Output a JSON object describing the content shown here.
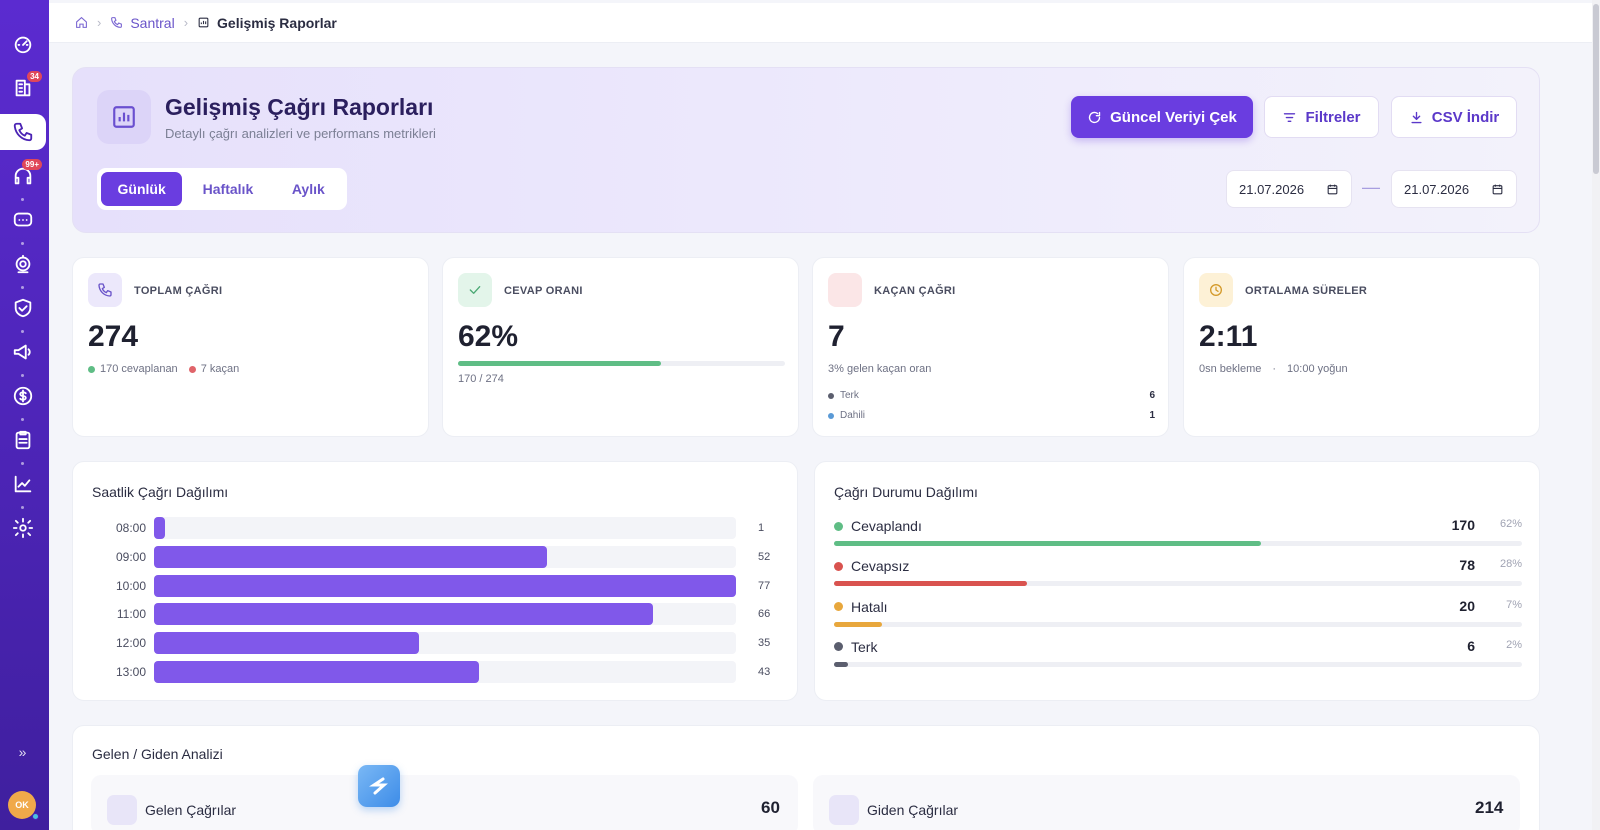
{
  "sidebar": {
    "items": [
      {
        "icon": "gauge-icon",
        "badge": ""
      },
      {
        "icon": "inbox-icon",
        "badge": "34"
      },
      {
        "icon": "phone-icon",
        "badge": "",
        "active": true
      },
      {
        "icon": "headset-icon",
        "badge": "99+"
      },
      {
        "icon": "chat-icon",
        "badge": ""
      },
      {
        "icon": "camera-icon",
        "badge": ""
      },
      {
        "icon": "shield-icon",
        "badge": ""
      },
      {
        "icon": "megaphone-icon",
        "badge": ""
      },
      {
        "icon": "dollar-icon",
        "badge": ""
      },
      {
        "icon": "clipboard-icon",
        "badge": ""
      },
      {
        "icon": "chart-line-icon",
        "badge": ""
      },
      {
        "icon": "gear-icon",
        "badge": ""
      }
    ],
    "expand_label": "»",
    "avatar_initials": "OK"
  },
  "breadcrumb": {
    "items": [
      "Santral",
      "Gelişmiş Raporlar"
    ]
  },
  "hero": {
    "title": "Gelişmiş Çağrı Raporları",
    "subtitle": "Detaylı çağrı analizleri ve performans metrikleri",
    "refresh_label": "Güncel Veriyi Çek",
    "filter_label": "Filtreler",
    "csv_label": "CSV İndir",
    "tabs": [
      "Günlük",
      "Haftalık",
      "Aylık"
    ],
    "active_tab": "Günlük",
    "date_from": "21.07.2026",
    "date_to": "21.07.2026",
    "date_separator": "—"
  },
  "kpis": {
    "total": {
      "label": "TOPLAM ÇAĞRI",
      "value": "274",
      "answered": "170 cevaplanan",
      "missed": "7 kaçan"
    },
    "answer_rate": {
      "label": "CEVAP ORANI",
      "value": "62%",
      "progress": 0.62,
      "detail": "170 / 274"
    },
    "missed": {
      "label": "KAÇAN ÇAĞRI",
      "value": "7",
      "detail": "3% gelen kaçan oran",
      "breakdown": [
        {
          "name": "Terk",
          "value": "6"
        },
        {
          "name": "Dahili",
          "value": "1"
        }
      ]
    },
    "durations": {
      "label": "ORTALAMA SÜRELER",
      "value": "2:11",
      "wait": "0sn bekleme",
      "separator": "·",
      "peak": "10:00 yoğun"
    }
  },
  "hourly": {
    "title": "Saatlik Çağrı Dağılımı"
  },
  "status": {
    "title": "Çağrı Durumu Dağılımı",
    "rows": [
      {
        "name": "Cevaplandı",
        "count": "170",
        "pct": "62%",
        "fraction": 0.62,
        "color": "#5fbd85"
      },
      {
        "name": "Cevapsız",
        "count": "78",
        "pct": "28%",
        "fraction": 0.28,
        "color": "#d9534f"
      },
      {
        "name": "Hatalı",
        "count": "20",
        "pct": "7%",
        "fraction": 0.07,
        "color": "#e8a73c"
      },
      {
        "name": "Terk",
        "count": "6",
        "pct": "2%",
        "fraction": 0.02,
        "color": "#5b5e6e"
      }
    ]
  },
  "inout": {
    "title": "Gelen / Giden Analizi",
    "incoming_label": "Gelen Çağrılar",
    "incoming_value": "60",
    "outgoing_label": "Giden Çağrılar",
    "outgoing_value": "214"
  },
  "chart_data": {
    "type": "bar",
    "orientation": "horizontal",
    "title": "Saatlik Çağrı Dağılımı",
    "categories": [
      "08:00",
      "09:00",
      "10:00",
      "11:00",
      "12:00",
      "13:00"
    ],
    "values": [
      1,
      52,
      77,
      66,
      35,
      43
    ],
    "xlim": [
      0,
      77
    ],
    "color": "#8058ea"
  }
}
